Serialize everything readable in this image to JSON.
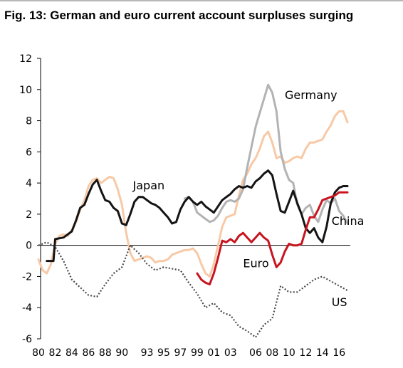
{
  "title": "Fig. 13: German and euro current account surpluses surging",
  "chart_data": {
    "type": "line",
    "title": "Fig. 13: German and euro current account surpluses surging",
    "xlabel": "",
    "ylabel": "",
    "ylim": [
      -6,
      12
    ],
    "yticks": [
      -6,
      -4,
      -2,
      0,
      2,
      4,
      6,
      8,
      10,
      12
    ],
    "xlim": [
      1980,
      2017
    ],
    "xticks": [
      {
        "x": 1980,
        "label": "80"
      },
      {
        "x": 1982,
        "label": "82"
      },
      {
        "x": 1984,
        "label": "84"
      },
      {
        "x": 1986,
        "label": "86"
      },
      {
        "x": 1988,
        "label": "88"
      },
      {
        "x": 1990,
        "label": "90"
      },
      {
        "x": 1993,
        "label": "93"
      },
      {
        "x": 1995,
        "label": "95"
      },
      {
        "x": 1997,
        "label": "97"
      },
      {
        "x": 1999,
        "label": "99"
      },
      {
        "x": 2001,
        "label": "01"
      },
      {
        "x": 2003,
        "label": "03"
      },
      {
        "x": 2006,
        "label": "06"
      },
      {
        "x": 2008,
        "label": "08"
      },
      {
        "x": 2010,
        "label": "10"
      },
      {
        "x": 2012,
        "label": "12"
      },
      {
        "x": 2014,
        "label": "14"
      },
      {
        "x": 2016,
        "label": "16"
      }
    ],
    "grid": false,
    "series": [
      {
        "name": "Germany",
        "color": "#f7c9a6",
        "style": "solid",
        "points": [
          [
            1980,
            -0.9
          ],
          [
            1980.5,
            -1.6
          ],
          [
            1981,
            -1.8
          ],
          [
            1981.5,
            -1.2
          ],
          [
            1982,
            0.1
          ],
          [
            1982.5,
            0.6
          ],
          [
            1983,
            0.7
          ],
          [
            1983.5,
            0.6
          ],
          [
            1984,
            1.0
          ],
          [
            1984.5,
            1.5
          ],
          [
            1985,
            2.3
          ],
          [
            1985.5,
            2.9
          ],
          [
            1986,
            3.8
          ],
          [
            1986.5,
            4.2
          ],
          [
            1987,
            4.3
          ],
          [
            1987.5,
            4.0
          ],
          [
            1988,
            4.2
          ],
          [
            1988.5,
            4.4
          ],
          [
            1989,
            4.3
          ],
          [
            1989.5,
            3.6
          ],
          [
            1990,
            2.6
          ],
          [
            1990.5,
            0.8
          ],
          [
            1991,
            -0.5
          ],
          [
            1991.5,
            -1.0
          ],
          [
            1992,
            -0.9
          ],
          [
            1992.5,
            -0.8
          ],
          [
            1993,
            -0.7
          ],
          [
            1993.5,
            -0.8
          ],
          [
            1994,
            -1.1
          ],
          [
            1994.5,
            -1.0
          ],
          [
            1995,
            -1.0
          ],
          [
            1995.5,
            -0.9
          ],
          [
            1996,
            -0.6
          ],
          [
            1996.5,
            -0.5
          ],
          [
            1997,
            -0.4
          ],
          [
            1997.5,
            -0.3
          ],
          [
            1998,
            -0.3
          ],
          [
            1998.5,
            -0.2
          ],
          [
            1999,
            -0.5
          ],
          [
            1999.5,
            -1.2
          ],
          [
            2000,
            -1.8
          ],
          [
            2000.5,
            -2.0
          ],
          [
            2001,
            -1.2
          ],
          [
            2001.5,
            0.0
          ],
          [
            2002,
            1.2
          ],
          [
            2002.5,
            1.8
          ],
          [
            2003,
            1.9
          ],
          [
            2003.5,
            2.0
          ],
          [
            2004,
            3.2
          ],
          [
            2004.5,
            4.2
          ],
          [
            2005,
            4.6
          ],
          [
            2005.5,
            5.2
          ],
          [
            2006,
            5.6
          ],
          [
            2006.5,
            6.2
          ],
          [
            2007,
            7.0
          ],
          [
            2007.5,
            7.3
          ],
          [
            2008,
            6.6
          ],
          [
            2008.5,
            5.6
          ],
          [
            2009,
            5.7
          ],
          [
            2009.5,
            5.3
          ],
          [
            2010,
            5.4
          ],
          [
            2010.5,
            5.6
          ],
          [
            2011,
            5.7
          ],
          [
            2011.5,
            5.6
          ],
          [
            2012,
            6.2
          ],
          [
            2012.5,
            6.6
          ],
          [
            2013,
            6.6
          ],
          [
            2013.5,
            6.7
          ],
          [
            2014,
            6.8
          ],
          [
            2014.5,
            7.3
          ],
          [
            2015,
            7.7
          ],
          [
            2015.5,
            8.3
          ],
          [
            2016,
            8.6
          ],
          [
            2016.5,
            8.6
          ],
          [
            2017,
            7.9
          ]
        ]
      },
      {
        "name": "China",
        "color": "#b3b3b3",
        "style": "solid",
        "points": [
          [
            1997.5,
            3.0
          ],
          [
            1998,
            3.1
          ],
          [
            1998.5,
            2.8
          ],
          [
            1999,
            2.1
          ],
          [
            1999.5,
            1.9
          ],
          [
            2000,
            1.7
          ],
          [
            2000.5,
            1.5
          ],
          [
            2001,
            1.6
          ],
          [
            2001.5,
            1.9
          ],
          [
            2002,
            2.4
          ],
          [
            2002.5,
            2.8
          ],
          [
            2003,
            2.9
          ],
          [
            2003.5,
            2.8
          ],
          [
            2004,
            3.0
          ],
          [
            2004.5,
            3.6
          ],
          [
            2005,
            5.0
          ],
          [
            2005.5,
            6.3
          ],
          [
            2006,
            7.6
          ],
          [
            2006.5,
            8.5
          ],
          [
            2007,
            9.4
          ],
          [
            2007.5,
            10.3
          ],
          [
            2008,
            9.8
          ],
          [
            2008.5,
            8.6
          ],
          [
            2009,
            6.0
          ],
          [
            2009.5,
            4.9
          ],
          [
            2010,
            4.2
          ],
          [
            2010.5,
            4.0
          ],
          [
            2011,
            2.6
          ],
          [
            2011.5,
            2.0
          ],
          [
            2012,
            2.4
          ],
          [
            2012.5,
            2.6
          ],
          [
            2013,
            1.9
          ],
          [
            2013.5,
            1.5
          ],
          [
            2014,
            2.3
          ],
          [
            2014.5,
            2.9
          ],
          [
            2015,
            2.7
          ],
          [
            2015.5,
            3.0
          ],
          [
            2016,
            2.2
          ],
          [
            2016.5,
            1.9
          ],
          [
            2017,
            1.4
          ]
        ]
      },
      {
        "name": "Japan",
        "color": "#141414",
        "style": "solid",
        "points": [
          [
            1981,
            -1.0
          ],
          [
            1981.8,
            -1.0
          ],
          [
            1982,
            0.4
          ],
          [
            1983,
            0.5
          ],
          [
            1984,
            0.9
          ],
          [
            1984.5,
            1.6
          ],
          [
            1985,
            2.4
          ],
          [
            1985.5,
            2.6
          ],
          [
            1986,
            3.3
          ],
          [
            1986.5,
            3.9
          ],
          [
            1987,
            4.2
          ],
          [
            1987.5,
            3.5
          ],
          [
            1988,
            2.9
          ],
          [
            1988.5,
            2.8
          ],
          [
            1989,
            2.4
          ],
          [
            1989.5,
            2.2
          ],
          [
            1990,
            1.4
          ],
          [
            1990.5,
            1.3
          ],
          [
            1991,
            2.0
          ],
          [
            1991.5,
            2.8
          ],
          [
            1992,
            3.1
          ],
          [
            1992.5,
            3.1
          ],
          [
            1993,
            2.9
          ],
          [
            1993.5,
            2.7
          ],
          [
            1994,
            2.6
          ],
          [
            1994.5,
            2.4
          ],
          [
            1995,
            2.1
          ],
          [
            1995.5,
            1.8
          ],
          [
            1996,
            1.4
          ],
          [
            1996.5,
            1.5
          ],
          [
            1997,
            2.3
          ],
          [
            1997.5,
            2.8
          ],
          [
            1998,
            3.1
          ],
          [
            1998.5,
            2.8
          ],
          [
            1999,
            2.6
          ],
          [
            1999.5,
            2.8
          ],
          [
            2000,
            2.5
          ],
          [
            2000.5,
            2.3
          ],
          [
            2001,
            2.1
          ],
          [
            2001.5,
            2.5
          ],
          [
            2002,
            2.9
          ],
          [
            2002.5,
            3.1
          ],
          [
            2003,
            3.3
          ],
          [
            2003.5,
            3.6
          ],
          [
            2004,
            3.8
          ],
          [
            2004.5,
            3.7
          ],
          [
            2005,
            3.8
          ],
          [
            2005.5,
            3.7
          ],
          [
            2006,
            4.1
          ],
          [
            2006.5,
            4.3
          ],
          [
            2007,
            4.6
          ],
          [
            2007.5,
            4.8
          ],
          [
            2008,
            4.5
          ],
          [
            2008.5,
            3.3
          ],
          [
            2009,
            2.2
          ],
          [
            2009.5,
            2.1
          ],
          [
            2010,
            2.8
          ],
          [
            2010.5,
            3.5
          ],
          [
            2011,
            2.7
          ],
          [
            2011.5,
            2.0
          ],
          [
            2012,
            1.1
          ],
          [
            2012.5,
            0.8
          ],
          [
            2013,
            1.1
          ],
          [
            2013.5,
            0.5
          ],
          [
            2014,
            0.2
          ],
          [
            2014.5,
            1.2
          ],
          [
            2015,
            2.7
          ],
          [
            2015.5,
            3.4
          ],
          [
            2016,
            3.7
          ],
          [
            2016.5,
            3.8
          ],
          [
            2017,
            3.8
          ]
        ]
      },
      {
        "name": "Euro",
        "color": "#c8141e",
        "style": "solid",
        "points": [
          [
            1999,
            -1.8
          ],
          [
            1999.5,
            -2.2
          ],
          [
            2000,
            -2.4
          ],
          [
            2000.5,
            -2.5
          ],
          [
            2001,
            -1.8
          ],
          [
            2001.5,
            -0.8
          ],
          [
            2002,
            0.3
          ],
          [
            2002.5,
            0.2
          ],
          [
            2003,
            0.4
          ],
          [
            2003.5,
            0.2
          ],
          [
            2004,
            0.6
          ],
          [
            2004.5,
            0.8
          ],
          [
            2005,
            0.5
          ],
          [
            2005.5,
            0.2
          ],
          [
            2006,
            0.5
          ],
          [
            2006.5,
            0.8
          ],
          [
            2007,
            0.5
          ],
          [
            2007.5,
            0.3
          ],
          [
            2008,
            -0.6
          ],
          [
            2008.5,
            -1.4
          ],
          [
            2009,
            -1.1
          ],
          [
            2009.5,
            -0.4
          ],
          [
            2010,
            0.1
          ],
          [
            2010.5,
            0.0
          ],
          [
            2011,
            0.0
          ],
          [
            2011.5,
            0.1
          ],
          [
            2012,
            1.0
          ],
          [
            2012.5,
            1.8
          ],
          [
            2013,
            1.8
          ],
          [
            2013.5,
            2.3
          ],
          [
            2014,
            2.9
          ],
          [
            2014.5,
            3.0
          ],
          [
            2015,
            3.1
          ],
          [
            2015.5,
            3.2
          ],
          [
            2016,
            3.4
          ],
          [
            2016.5,
            3.4
          ],
          [
            2017,
            3.4
          ]
        ]
      },
      {
        "name": "US",
        "color": "#4a4a4a",
        "style": "dotted",
        "points": [
          [
            1980,
            0.0
          ],
          [
            1981,
            0.2
          ],
          [
            1982,
            -0.1
          ],
          [
            1983,
            -1.0
          ],
          [
            1984,
            -2.2
          ],
          [
            1985,
            -2.7
          ],
          [
            1986,
            -3.2
          ],
          [
            1987,
            -3.3
          ],
          [
            1988,
            -2.5
          ],
          [
            1989,
            -1.8
          ],
          [
            1990,
            -1.4
          ],
          [
            1991,
            0.0
          ],
          [
            1992,
            -0.5
          ],
          [
            1993,
            -1.2
          ],
          [
            1994,
            -1.6
          ],
          [
            1995,
            -1.4
          ],
          [
            1996,
            -1.5
          ],
          [
            1997,
            -1.6
          ],
          [
            1998,
            -2.4
          ],
          [
            1999,
            -3.1
          ],
          [
            2000,
            -4.0
          ],
          [
            2001,
            -3.7
          ],
          [
            2002,
            -4.3
          ],
          [
            2003,
            -4.5
          ],
          [
            2004,
            -5.2
          ],
          [
            2005,
            -5.5
          ],
          [
            2006,
            -5.9
          ],
          [
            2007,
            -5.1
          ],
          [
            2008,
            -4.7
          ],
          [
            2009,
            -2.6
          ],
          [
            2010,
            -3.0
          ],
          [
            2011,
            -3.0
          ],
          [
            2012,
            -2.6
          ],
          [
            2013,
            -2.2
          ],
          [
            2014,
            -2.0
          ],
          [
            2015,
            -2.3
          ],
          [
            2016,
            -2.6
          ],
          [
            2017,
            -2.9
          ]
        ]
      }
    ],
    "annotations": [
      {
        "text": "Germany",
        "x": 2009.5,
        "y": 9.4
      },
      {
        "text": "Japan",
        "x": 1991.3,
        "y": 3.6
      },
      {
        "text": "China",
        "x": 2015.1,
        "y": 1.3
      },
      {
        "text": "Euro",
        "x": 2004.5,
        "y": -1.4
      },
      {
        "text": "US",
        "x": 2015.1,
        "y": -3.9
      }
    ]
  }
}
